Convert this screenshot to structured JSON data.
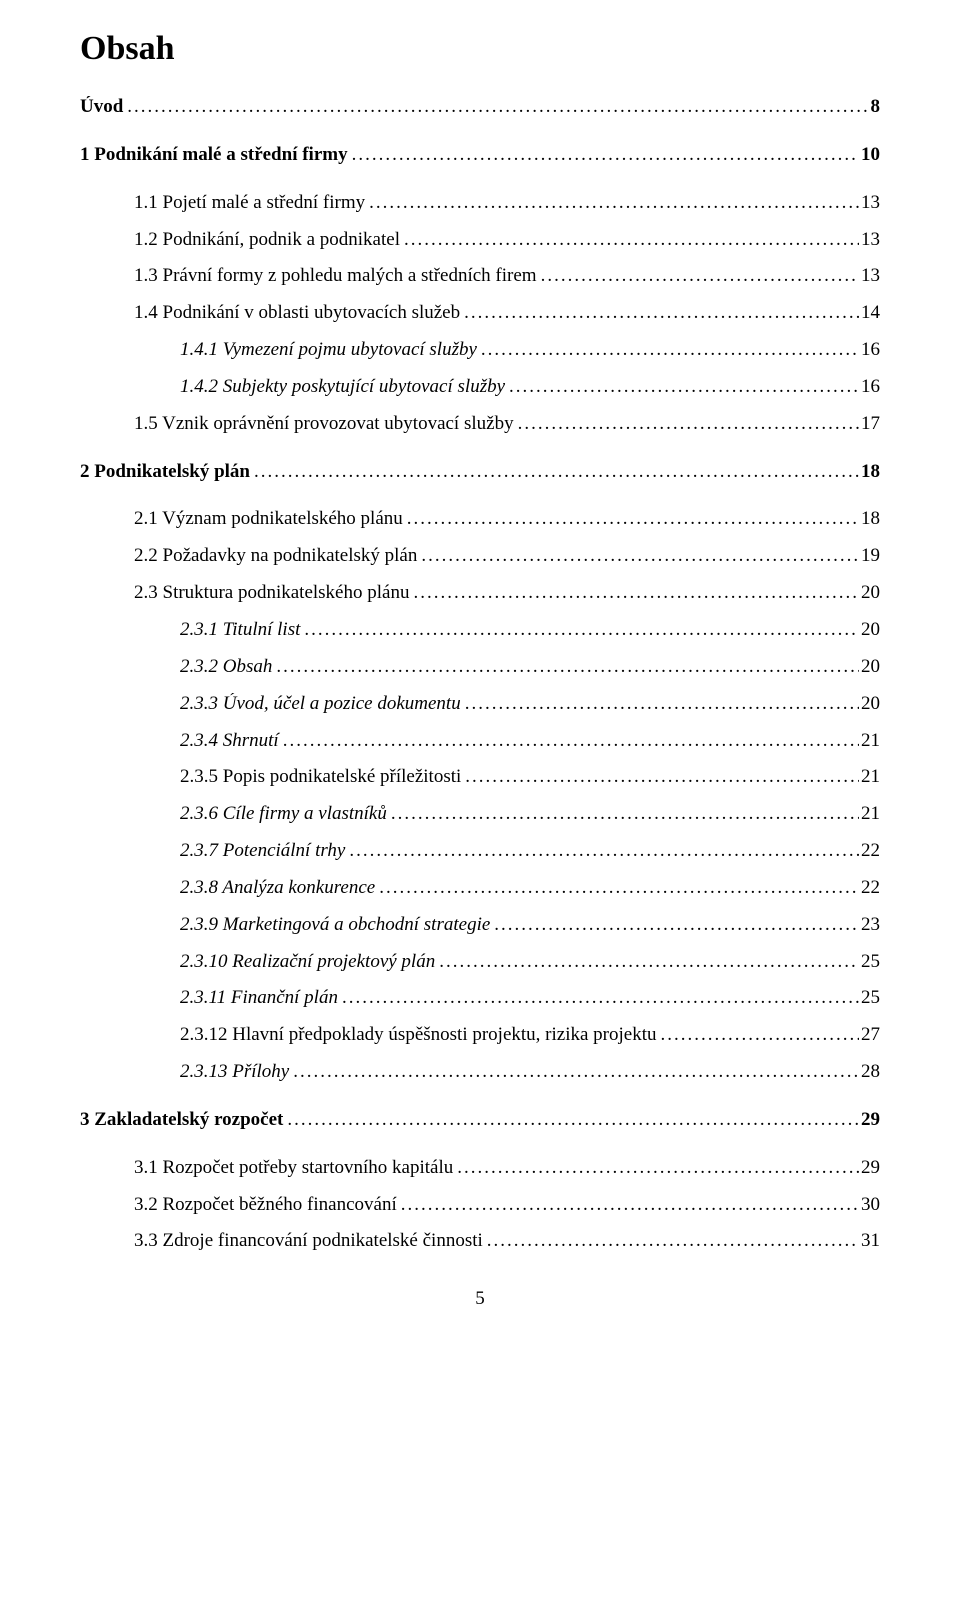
{
  "title": "Obsah",
  "footer_page": "5",
  "toc": [
    {
      "indent": "lvl-0",
      "bold": true,
      "italic": false,
      "label": "Úvod",
      "page": "8",
      "extraGap": false
    },
    {
      "indent": "lvl-0",
      "bold": true,
      "italic": false,
      "label": "1      Podnikání malé a střední firmy",
      "page": "10",
      "extraGap": true
    },
    {
      "indent": "lvl-1",
      "bold": false,
      "italic": false,
      "label": "1.1 Pojetí malé a střední firmy",
      "page": "13",
      "extraGap": true
    },
    {
      "indent": "lvl-1",
      "bold": false,
      "italic": false,
      "label": "1.2 Podnikání, podnik a podnikatel",
      "page": "13",
      "extraGap": false
    },
    {
      "indent": "lvl-1",
      "bold": false,
      "italic": false,
      "label": "1.3 Právní formy z pohledu malých a středních firem",
      "page": "13",
      "extraGap": false
    },
    {
      "indent": "lvl-1",
      "bold": false,
      "italic": false,
      "label": "1.4 Podnikání v oblasti ubytovacích služeb",
      "page": "14",
      "extraGap": false
    },
    {
      "indent": "lvl-2",
      "bold": false,
      "italic": true,
      "label": "1.4.1 Vymezení pojmu ubytovací služby",
      "page": "16",
      "extraGap": false
    },
    {
      "indent": "lvl-2",
      "bold": false,
      "italic": true,
      "label": "1.4.2 Subjekty poskytující ubytovací služby",
      "page": "16",
      "extraGap": false
    },
    {
      "indent": "lvl-1",
      "bold": false,
      "italic": false,
      "label": "1.5 Vznik oprávnění provozovat ubytovací služby",
      "page": "17",
      "extraGap": false
    },
    {
      "indent": "lvl-0",
      "bold": true,
      "italic": false,
      "label": "2      Podnikatelský plán",
      "page": "18",
      "extraGap": true
    },
    {
      "indent": "lvl-1",
      "bold": false,
      "italic": false,
      "label": "2.1 Význam podnikatelského plánu",
      "page": "18",
      "extraGap": true
    },
    {
      "indent": "lvl-1",
      "bold": false,
      "italic": false,
      "label": "2.2 Požadavky na podnikatelský plán",
      "page": "19",
      "extraGap": false
    },
    {
      "indent": "lvl-1",
      "bold": false,
      "italic": false,
      "label": "2.3 Struktura podnikatelského plánu",
      "page": "20",
      "extraGap": false
    },
    {
      "indent": "lvl-2",
      "bold": false,
      "italic": true,
      "label": "2.3.1    Titulní list",
      "page": "20",
      "extraGap": false
    },
    {
      "indent": "lvl-2",
      "bold": false,
      "italic": true,
      "label": "2.3.2    Obsah",
      "page": "20",
      "extraGap": false
    },
    {
      "indent": "lvl-2",
      "bold": false,
      "italic": true,
      "label": "2.3.3  Úvod, účel a pozice dokumentu",
      "page": "20",
      "extraGap": false
    },
    {
      "indent": "lvl-2",
      "bold": false,
      "italic": true,
      "label": "2.3.4  Shrnutí",
      "page": "21",
      "extraGap": false
    },
    {
      "indent": "lvl-2",
      "bold": false,
      "italic": false,
      "label": "2.3.5  Popis podnikatelské příležitosti",
      "page": "21",
      "extraGap": false,
      "italicPrefixLen": 6
    },
    {
      "indent": "lvl-2",
      "bold": false,
      "italic": true,
      "label": "2.3.6  Cíle firmy a vlastníků",
      "page": "21",
      "extraGap": false
    },
    {
      "indent": "lvl-2",
      "bold": false,
      "italic": true,
      "label": "2.3.7  Potenciální trhy",
      "page": "22",
      "extraGap": false
    },
    {
      "indent": "lvl-2",
      "bold": false,
      "italic": true,
      "label": "2.3.8  Analýza konkurence",
      "page": "22",
      "extraGap": false
    },
    {
      "indent": "lvl-2",
      "bold": false,
      "italic": true,
      "label": "2.3.9  Marketingová a obchodní strategie",
      "page": "23",
      "extraGap": false
    },
    {
      "indent": "lvl-2",
      "bold": false,
      "italic": true,
      "label": "2.3.10 Realizační projektový plán",
      "page": "25",
      "extraGap": false
    },
    {
      "indent": "lvl-2",
      "bold": false,
      "italic": true,
      "label": "2.3.11 Finanční plán",
      "page": "25",
      "extraGap": false
    },
    {
      "indent": "lvl-2",
      "bold": false,
      "italic": false,
      "label": "2.3.12 Hlavní předpoklady úspěšnosti projektu, rizika projektu",
      "page": "27",
      "extraGap": false,
      "italicSuffixFrom": 13
    },
    {
      "indent": "lvl-2",
      "bold": false,
      "italic": true,
      "label": "2.3.13 Přílohy",
      "page": "28",
      "extraGap": false
    },
    {
      "indent": "lvl-0",
      "bold": true,
      "italic": false,
      "label": "3      Zakladatelský rozpočet",
      "page": "29",
      "extraGap": true
    },
    {
      "indent": "lvl-1",
      "bold": false,
      "italic": false,
      "label": "3.1 Rozpočet potřeby startovního kapitálu",
      "page": "29",
      "extraGap": true
    },
    {
      "indent": "lvl-1",
      "bold": false,
      "italic": false,
      "label": "3.2 Rozpočet běžného financování",
      "page": "30",
      "extraGap": false
    },
    {
      "indent": "lvl-1",
      "bold": false,
      "italic": false,
      "label": "3.3 Zdroje financování podnikatelské činnosti",
      "page": "31",
      "extraGap": false
    }
  ]
}
